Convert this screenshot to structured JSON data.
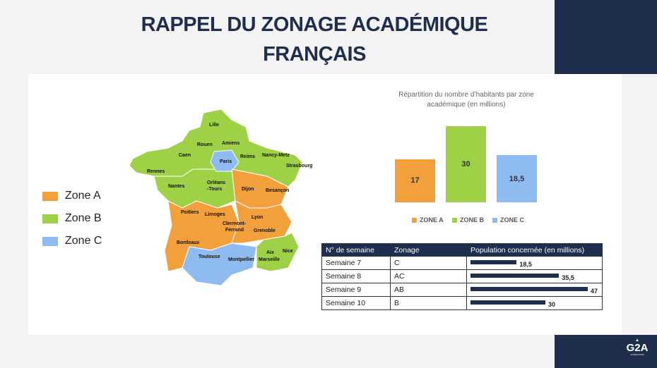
{
  "title": "RAPPEL DU ZONAGE ACADÉMIQUE FRANÇAIS",
  "colors": {
    "zoneA": "#f2a03c",
    "zoneB": "#9fd147",
    "zoneC": "#8fbcf0",
    "navy": "#1f2e4c"
  },
  "legend": [
    "Zone A",
    "Zone B",
    "Zone C"
  ],
  "map_cities": [
    "Lille",
    "Amiens",
    "Rouen",
    "Caen",
    "Reims",
    "Paris",
    "Nancy-Metz",
    "Strasbourg",
    "Rennes",
    "Nantes",
    "Orléans",
    "-Tours",
    "Dijon",
    "Besançon",
    "Poitiers",
    "Limoges",
    "Clermont-",
    "Ferrand",
    "Lyon",
    "Grenoble",
    "Bordeaux",
    "Toulouse",
    "Montpellier",
    "Aix",
    "Marseille",
    "Nice"
  ],
  "chart_data": {
    "type": "bar",
    "title": "Répartition du nombre d’habitants par zone académique (en millions)",
    "categories": [
      "ZONE A",
      "ZONE B",
      "ZONE C"
    ],
    "values": [
      17,
      30,
      18.5
    ],
    "value_labels": [
      "17",
      "30",
      "18,5"
    ],
    "ylim": [
      0,
      30
    ]
  },
  "table": {
    "headers": [
      "N° de semaine",
      "Zonage",
      "Population concernée (en millions)"
    ],
    "rows": [
      {
        "week": "Semaine 7",
        "zone": "C",
        "pop": 18.5,
        "label": "18,5"
      },
      {
        "week": "Semaine 8",
        "zone": "AC",
        "pop": 35.5,
        "label": "35,5"
      },
      {
        "week": "Semaine 9",
        "zone": "AB",
        "pop": 47,
        "label": "47"
      },
      {
        "week": "Semaine 10",
        "zone": "B",
        "pop": 30,
        "label": "30"
      }
    ]
  },
  "logo": {
    "text": "G2A",
    "sub": "CONSULTING"
  }
}
